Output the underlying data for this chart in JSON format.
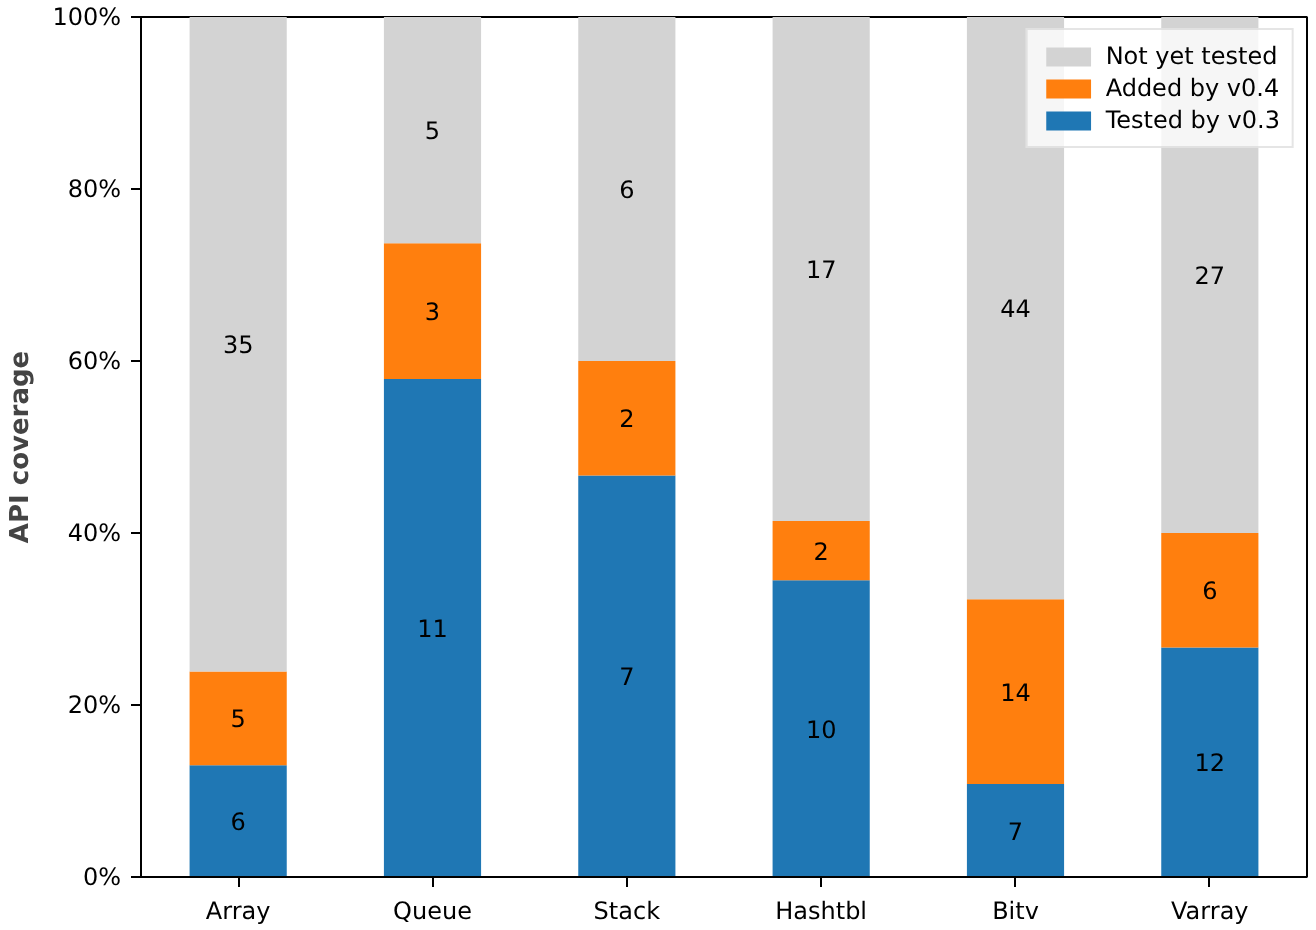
{
  "chart_data": {
    "type": "bar",
    "stacked": true,
    "ylabel": "API coverage",
    "categories": [
      "Array",
      "Queue",
      "Stack",
      "Hashtbl",
      "Bitv",
      "Varray"
    ],
    "series": [
      {
        "name": "Tested by v0.3",
        "color": "#1f77b4",
        "values": [
          13.0,
          57.9,
          46.7,
          34.5,
          10.8,
          26.7
        ]
      },
      {
        "name": "Added by v0.4",
        "color": "#ff7f0e",
        "values": [
          10.9,
          15.8,
          13.3,
          6.9,
          21.5,
          13.3
        ]
      },
      {
        "name": "Not yet tested",
        "color": "#d3d3d3",
        "values": [
          76.1,
          26.3,
          40.0,
          58.6,
          67.7,
          60.0
        ]
      }
    ],
    "annotations": [
      "6",
      "11",
      "7",
      "10",
      "7",
      "12",
      "5",
      "3",
      "2",
      "2",
      "14",
      "6",
      "35",
      "5",
      "6",
      "17",
      "44",
      "27"
    ],
    "ylim": [
      0,
      100
    ],
    "yticks": [
      {
        "value": 0,
        "label": "0%"
      },
      {
        "value": 20,
        "label": "20%"
      },
      {
        "value": 40,
        "label": "40%"
      },
      {
        "value": 60,
        "label": "60%"
      },
      {
        "value": 80,
        "label": "80%"
      },
      {
        "value": 100,
        "label": "100%"
      }
    ],
    "grid": false,
    "legend": "top right"
  }
}
